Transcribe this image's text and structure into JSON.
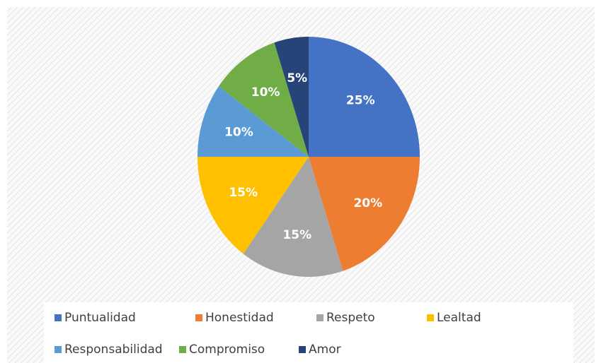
{
  "chart_data": {
    "type": "pie",
    "categories": [
      "Puntualidad",
      "Honestidad",
      "Respeto",
      "Lealtad",
      "Responsabilidad",
      "Compromiso",
      "Amor"
    ],
    "values": [
      25,
      20,
      15,
      15,
      10,
      10,
      5
    ],
    "value_labels": [
      "25%",
      "20%",
      "15%",
      "15%",
      "10%",
      "10%",
      "5%"
    ],
    "colors": [
      "#4472c4",
      "#ed7d31",
      "#a5a5a5",
      "#ffc000",
      "#5b9bd5",
      "#70ad47",
      "#264478"
    ],
    "legend": "bottom"
  }
}
